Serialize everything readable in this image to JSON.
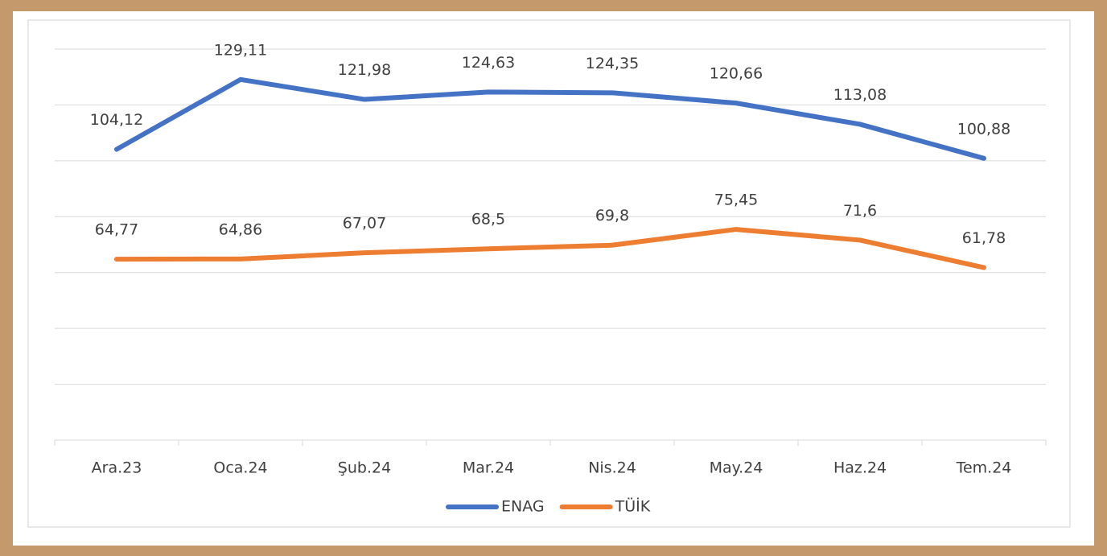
{
  "chart_data": {
    "type": "line",
    "categories": [
      "Ara.23",
      "Oca.24",
      "Şub.24",
      "Mar.24",
      "Nis.24",
      "May.24",
      "Haz.24",
      "Tem.24"
    ],
    "series": [
      {
        "name": "ENAG",
        "color": "#4472c4",
        "values": [
          104.12,
          129.11,
          121.98,
          124.63,
          124.35,
          120.66,
          113.08,
          100.88
        ],
        "value_labels": [
          "104,12",
          "129,11",
          "121,98",
          "124,63",
          "124,35",
          "120,66",
          "113,08",
          "100,88"
        ]
      },
      {
        "name": "TÜİK",
        "color": "#ed7d31",
        "values": [
          64.77,
          64.86,
          67.07,
          68.5,
          69.8,
          75.45,
          71.6,
          61.78
        ],
        "value_labels": [
          "64,77",
          "64,86",
          "67,07",
          "68,5",
          "69,8",
          "75,45",
          "71,6",
          "61,78"
        ]
      }
    ],
    "ylim": [
      0,
      140
    ],
    "yticks": [
      0,
      20,
      40,
      60,
      80,
      100,
      120,
      140
    ],
    "grid": true,
    "legend": "bottom"
  }
}
